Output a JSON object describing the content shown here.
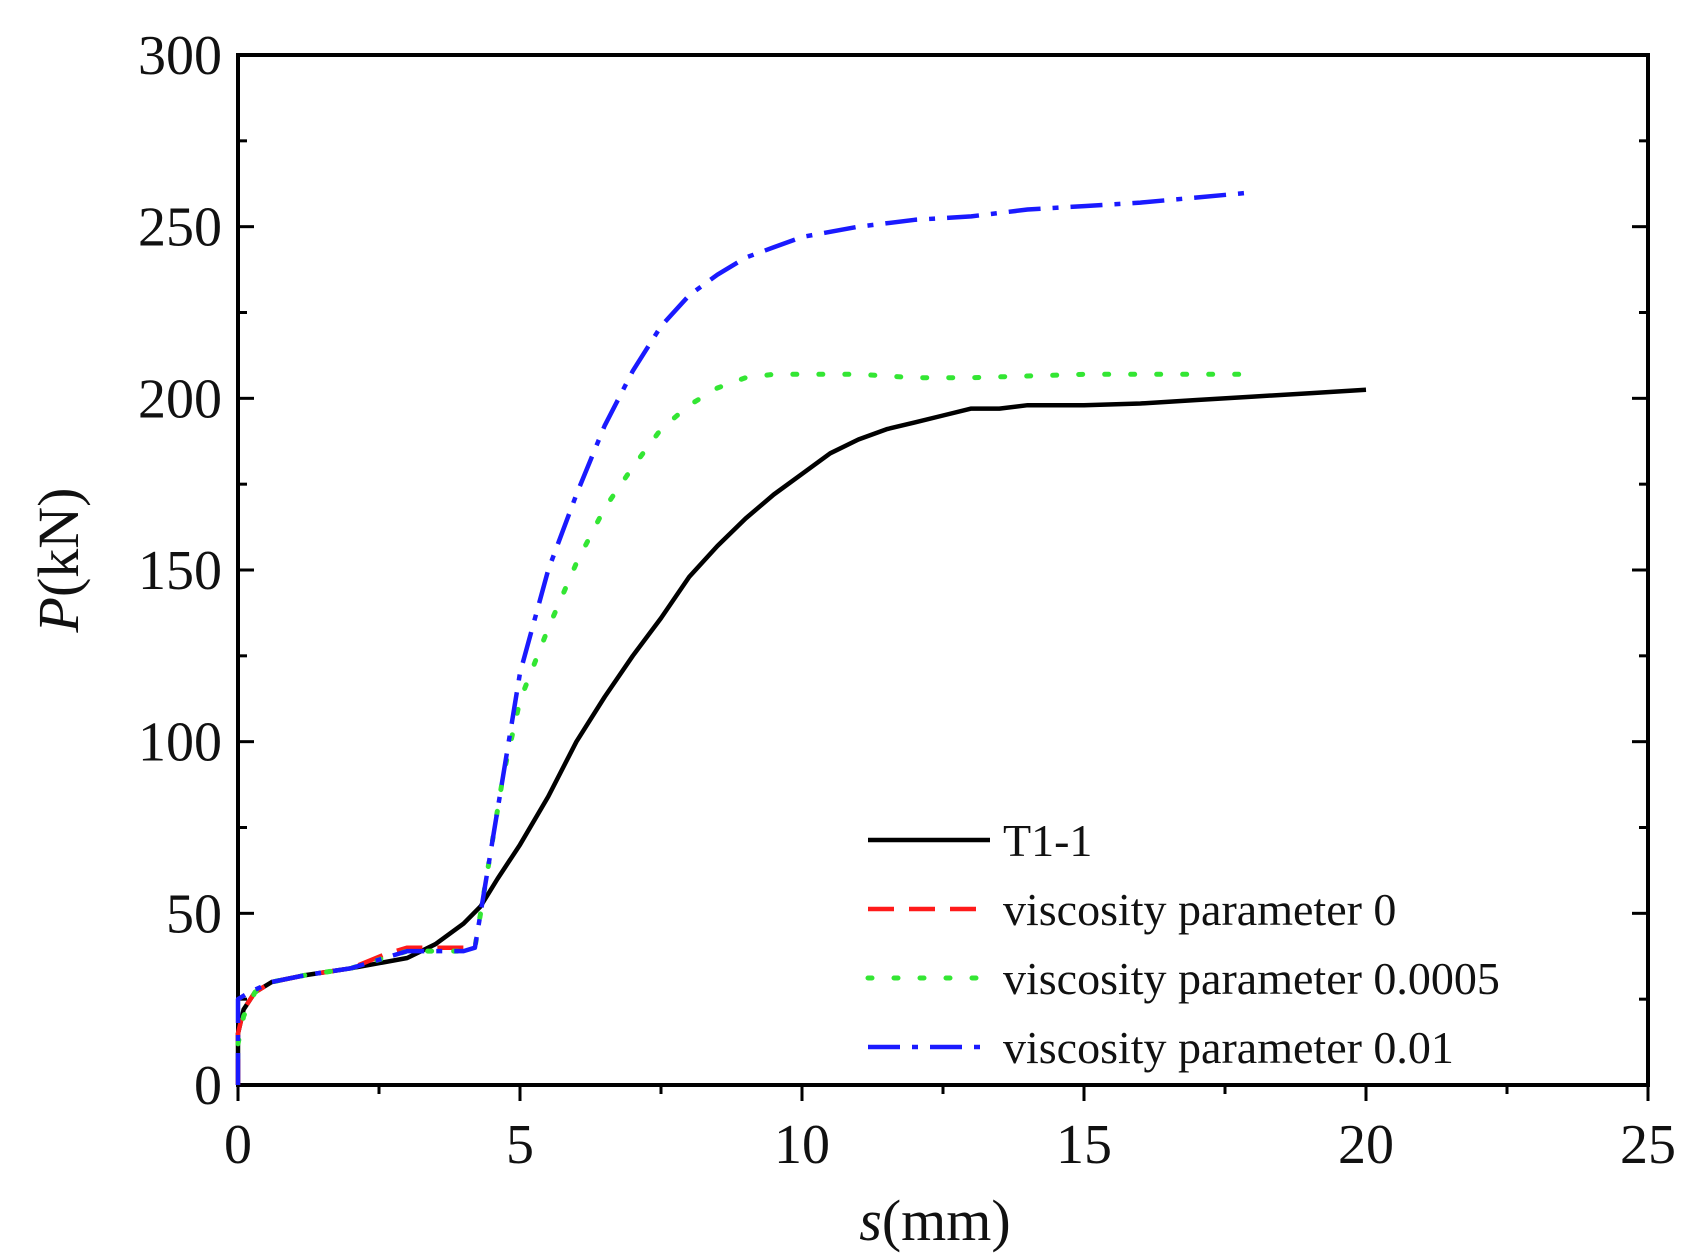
{
  "chart_data": {
    "type": "line",
    "title": "",
    "xlabel": {
      "var": "s",
      "unit": "(mm)"
    },
    "ylabel": {
      "var": "P",
      "unit": "(kN)"
    },
    "xlim": [
      0,
      25
    ],
    "ylim": [
      0,
      300
    ],
    "xticks": [
      0,
      5,
      10,
      15,
      20,
      25
    ],
    "yticks": [
      0,
      50,
      100,
      150,
      200,
      250,
      300
    ],
    "grid": false,
    "legend_position": "bottom-right",
    "series": [
      {
        "name": "T1-1",
        "color": "#000000",
        "style": "solid",
        "points": [
          [
            0,
            0
          ],
          [
            0,
            15
          ],
          [
            0.1,
            22
          ],
          [
            0.3,
            27
          ],
          [
            0.6,
            30
          ],
          [
            1.2,
            32
          ],
          [
            2.0,
            34
          ],
          [
            3.0,
            37
          ],
          [
            3.5,
            41
          ],
          [
            4.0,
            47
          ],
          [
            4.3,
            52
          ],
          [
            4.6,
            60
          ],
          [
            5.0,
            70
          ],
          [
            5.5,
            84
          ],
          [
            6.0,
            100
          ],
          [
            6.5,
            113
          ],
          [
            7.0,
            125
          ],
          [
            7.5,
            136
          ],
          [
            8.0,
            148
          ],
          [
            8.5,
            157
          ],
          [
            9.0,
            165
          ],
          [
            9.5,
            172
          ],
          [
            10.0,
            178
          ],
          [
            10.5,
            184
          ],
          [
            11.0,
            188
          ],
          [
            11.5,
            191
          ],
          [
            12.0,
            193
          ],
          [
            12.5,
            195
          ],
          [
            13.0,
            197
          ],
          [
            13.5,
            197
          ],
          [
            14.0,
            198
          ],
          [
            15.0,
            198
          ],
          [
            16.0,
            198.5
          ],
          [
            17.0,
            199.5
          ],
          [
            18.0,
            200.5
          ],
          [
            19.0,
            201.5
          ],
          [
            20.0,
            202.5
          ]
        ]
      },
      {
        "name": "viscosity parameter 0",
        "color": "#ff1a1a",
        "style": "dashed",
        "points": [
          [
            0,
            0
          ],
          [
            0,
            15
          ],
          [
            0.1,
            22
          ],
          [
            0.3,
            27
          ],
          [
            0.6,
            30
          ],
          [
            1.2,
            32
          ],
          [
            2.0,
            34
          ],
          [
            2.6,
            38
          ],
          [
            3.0,
            40
          ],
          [
            3.5,
            40
          ],
          [
            4.0,
            40
          ],
          [
            4.2,
            40
          ]
        ]
      },
      {
        "name": "viscosity parameter 0.0005",
        "color": "#33e633",
        "style": "dotted",
        "points": [
          [
            0,
            12
          ],
          [
            0.1,
            20
          ],
          [
            0.3,
            27
          ],
          [
            0.6,
            30
          ],
          [
            1.2,
            32
          ],
          [
            2.0,
            34
          ],
          [
            2.6,
            37
          ],
          [
            3.0,
            39
          ],
          [
            3.5,
            39
          ],
          [
            4.0,
            39
          ],
          [
            4.2,
            40
          ],
          [
            4.4,
            60
          ],
          [
            4.7,
            90
          ],
          [
            5.0,
            112
          ],
          [
            5.5,
            133
          ],
          [
            6.0,
            152
          ],
          [
            6.5,
            168
          ],
          [
            7.0,
            180
          ],
          [
            7.5,
            191
          ],
          [
            8.0,
            198
          ],
          [
            8.5,
            203
          ],
          [
            9.0,
            206
          ],
          [
            9.5,
            207
          ],
          [
            10.0,
            207
          ],
          [
            11.0,
            207
          ],
          [
            12.0,
            206
          ],
          [
            13.0,
            206
          ],
          [
            14.0,
            206.5
          ],
          [
            15.0,
            207
          ],
          [
            16.0,
            207
          ],
          [
            17.0,
            207
          ],
          [
            18.0,
            207
          ]
        ]
      },
      {
        "name": "viscosity parameter 0.01",
        "color": "#1a1aff",
        "style": "dashdot",
        "points": [
          [
            0,
            0
          ],
          [
            0,
            25
          ],
          [
            0.2,
            27
          ],
          [
            0.6,
            30
          ],
          [
            1.2,
            32
          ],
          [
            2.0,
            34
          ],
          [
            2.6,
            37
          ],
          [
            3.0,
            39
          ],
          [
            3.5,
            39
          ],
          [
            4.0,
            39
          ],
          [
            4.2,
            40
          ],
          [
            4.4,
            60
          ],
          [
            4.7,
            90
          ],
          [
            5.0,
            120
          ],
          [
            5.5,
            150
          ],
          [
            6.0,
            172
          ],
          [
            6.5,
            192
          ],
          [
            7.0,
            208
          ],
          [
            7.5,
            221
          ],
          [
            8.0,
            230
          ],
          [
            8.5,
            236
          ],
          [
            9.0,
            241
          ],
          [
            9.5,
            244
          ],
          [
            10.0,
            247
          ],
          [
            11.0,
            250
          ],
          [
            12.0,
            252
          ],
          [
            13.0,
            253
          ],
          [
            14.0,
            255
          ],
          [
            15.0,
            256
          ],
          [
            16.0,
            257
          ],
          [
            17.0,
            258.5
          ],
          [
            18.0,
            260
          ]
        ]
      }
    ]
  }
}
